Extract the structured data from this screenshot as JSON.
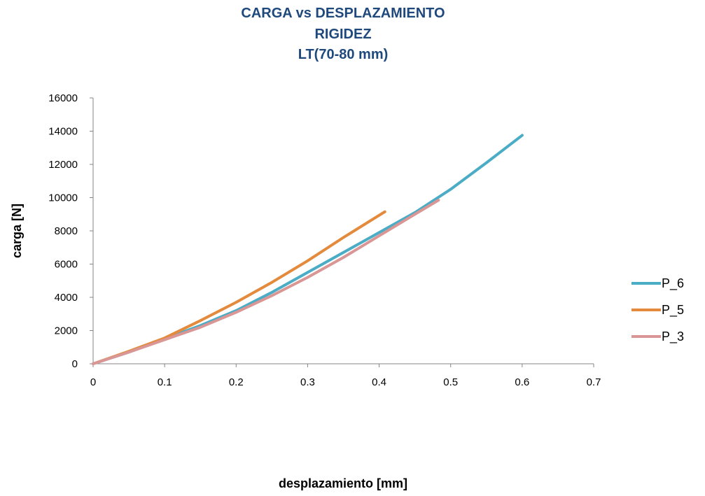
{
  "chart_data": {
    "type": "line",
    "title": [
      "CARGA vs DESPLAZAMIENTO",
      "RIGIDEZ",
      "LT(70-80 mm)"
    ],
    "xlabel": "desplazamiento [mm]",
    "ylabel": "carga [N]",
    "xlim": [
      0,
      0.7
    ],
    "ylim": [
      0,
      16000
    ],
    "x_ticks": [
      "0",
      "0.1",
      "0.2",
      "0.3",
      "0.4",
      "0.5",
      "0.6",
      "0.7"
    ],
    "y_ticks": [
      "0",
      "2000",
      "4000",
      "6000",
      "8000",
      "10000",
      "12000",
      "14000",
      "16000"
    ],
    "grid": false,
    "legend_position": "right",
    "series": [
      {
        "name": "P_6",
        "color": "#4bacc6",
        "x": [
          0,
          0.05,
          0.1,
          0.15,
          0.2,
          0.25,
          0.3,
          0.35,
          0.4,
          0.45,
          0.5,
          0.55,
          0.6
        ],
        "y": [
          0,
          700,
          1500,
          2300,
          3200,
          4300,
          5500,
          6700,
          7900,
          9100,
          10500,
          12100,
          13750
        ]
      },
      {
        "name": "P_5",
        "color": "#e48a3c",
        "x": [
          0,
          0.05,
          0.1,
          0.15,
          0.2,
          0.25,
          0.3,
          0.35,
          0.408
        ],
        "y": [
          0,
          750,
          1550,
          2600,
          3700,
          4900,
          6200,
          7600,
          9150
        ]
      },
      {
        "name": "P_3",
        "color": "#d99694",
        "x": [
          0,
          0.05,
          0.1,
          0.15,
          0.2,
          0.25,
          0.3,
          0.35,
          0.4,
          0.45,
          0.483
        ],
        "y": [
          0,
          700,
          1450,
          2200,
          3100,
          4100,
          5200,
          6400,
          7700,
          9000,
          9850
        ]
      }
    ]
  }
}
